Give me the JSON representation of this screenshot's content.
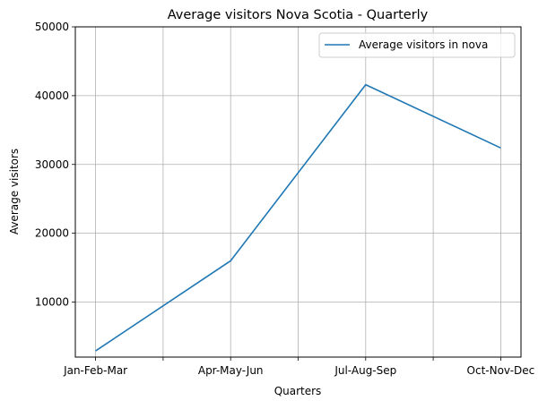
{
  "chart_data": {
    "type": "line",
    "title": "Average visitors Nova Scotia  - Quarterly",
    "xlabel": "Quarters",
    "ylabel": "Average visitors",
    "categories": [
      "Jan-Feb-Mar",
      "Apr-May-Jun",
      "Jul-Aug-Sep",
      "Oct-Nov-Dec"
    ],
    "series": [
      {
        "name": "Average visitors in nova",
        "values": [
          2900,
          16000,
          41600,
          32400
        ],
        "color": "#1f77b4"
      }
    ],
    "ylim": [
      2000,
      50000
    ],
    "yticks": [
      10000,
      20000,
      30000,
      40000,
      50000
    ],
    "xlim": [
      -0.15,
      3.15
    ],
    "minor_xticks": [
      0.5,
      1.5,
      2.5
    ],
    "grid": true,
    "legend_position": "top-right"
  }
}
